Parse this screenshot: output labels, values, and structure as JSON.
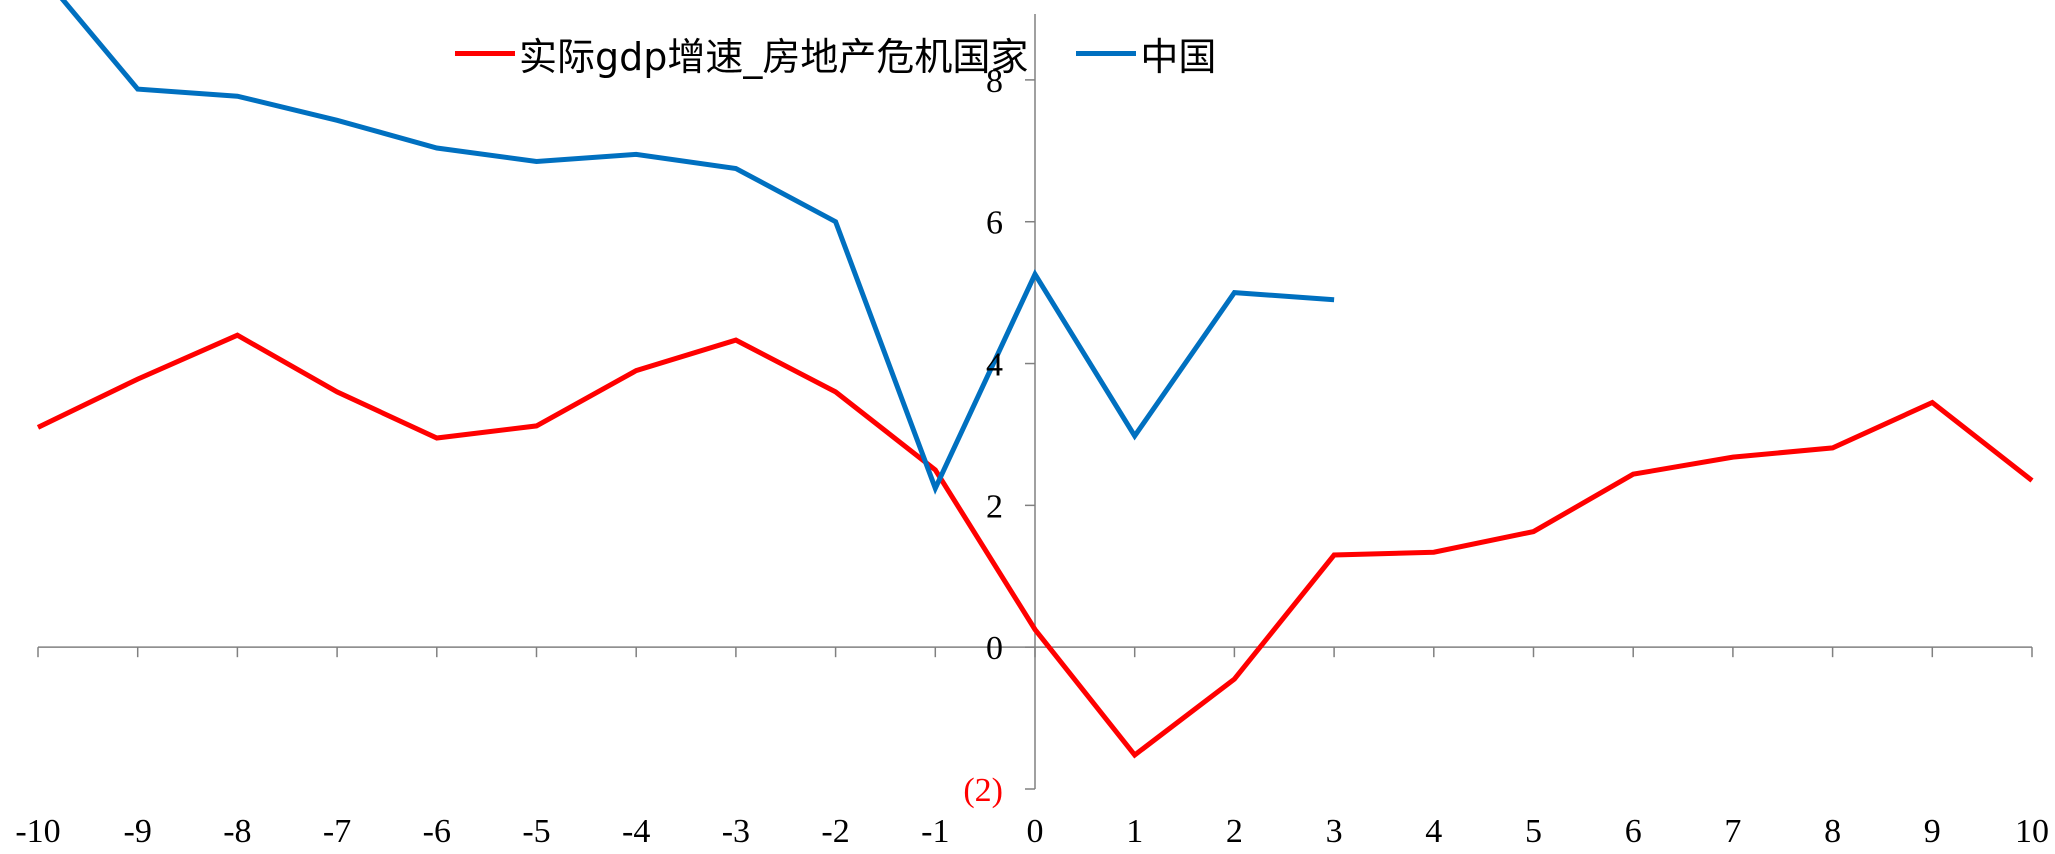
{
  "chart_data": {
    "type": "line",
    "x": [
      -10,
      -9,
      -8,
      -7,
      -6,
      -5,
      -4,
      -3,
      -2,
      -1,
      0,
      1,
      2,
      3,
      4,
      5,
      6,
      7,
      8,
      9,
      10
    ],
    "x_tick_labels": [
      "-10",
      "-9",
      "-8",
      "-7",
      "-6",
      "-5",
      "-4",
      "-3",
      "-2",
      "-1",
      "0",
      "1",
      "2",
      "3",
      "4",
      "5",
      "6",
      "7",
      "8",
      "9",
      "10"
    ],
    "y_ticks": [
      {
        "value": 8,
        "label": "8"
      },
      {
        "value": 6,
        "label": "6"
      },
      {
        "value": 4,
        "label": "4"
      },
      {
        "value": 2,
        "label": "2"
      },
      {
        "value": 0,
        "label": "0"
      },
      {
        "value": -2,
        "label": "(2)"
      }
    ],
    "ylim": [
      -2,
      9
    ],
    "xlim": [
      -10,
      10
    ],
    "negative_label_color": "#ff0000",
    "series": [
      {
        "name": "实际gdp增速_房地产危机国家",
        "color": "#ff0000",
        "values": [
          3.1,
          3.78,
          4.4,
          3.6,
          2.95,
          3.12,
          3.9,
          4.33,
          3.6,
          2.5,
          0.25,
          -1.52,
          -0.45,
          1.3,
          1.34,
          1.63,
          2.44,
          2.68,
          2.81,
          3.45,
          2.35
        ]
      },
      {
        "name": "中国",
        "color": "#0070c0",
        "values": [
          9.55,
          7.87,
          7.77,
          7.43,
          7.04,
          6.85,
          6.95,
          6.75,
          6.0,
          2.24,
          5.26,
          2.98,
          5.0,
          4.9,
          null,
          null,
          null,
          null,
          null,
          null,
          null
        ]
      }
    ],
    "legend_position": "top-center",
    "grid": false
  }
}
